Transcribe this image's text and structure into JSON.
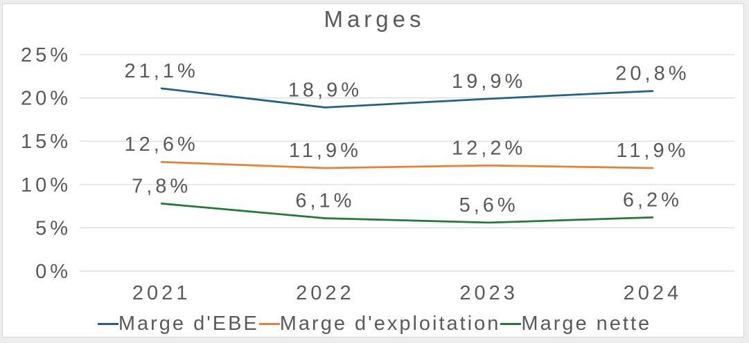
{
  "chart_data": {
    "type": "line",
    "title": "Marges",
    "categories": [
      "2021",
      "2022",
      "2023",
      "2024"
    ],
    "series": [
      {
        "name": "Marge d'EBE",
        "color": "#1F6287",
        "values": [
          21.1,
          18.9,
          19.9,
          20.8
        ],
        "labels": [
          "21,1%",
          "18,9%",
          "19,9%",
          "20,8%"
        ]
      },
      {
        "name": "Marge d'exploitation",
        "color": "#ED7D31",
        "values": [
          12.6,
          11.9,
          12.2,
          11.9
        ],
        "labels": [
          "12,6%",
          "11,9%",
          "12,2%",
          "11,9%"
        ]
      },
      {
        "name": "Marge nette",
        "color": "#1E7B34",
        "values": [
          7.8,
          6.1,
          5.6,
          6.2
        ],
        "labels": [
          "7,8%",
          "6,1%",
          "5,6%",
          "6,2%"
        ]
      }
    ],
    "y_axis": {
      "min": 0,
      "max": 25,
      "ticks": [
        25,
        20,
        15,
        10,
        5,
        0
      ],
      "tick_labels": [
        "25%",
        "20%",
        "15%",
        "10%",
        "5%",
        "0%"
      ]
    },
    "grid": true,
    "legend_position": "bottom",
    "text_color": "#595959",
    "grid_color": "#D9D9D9",
    "frame_border_color": "#D6D6D6"
  }
}
